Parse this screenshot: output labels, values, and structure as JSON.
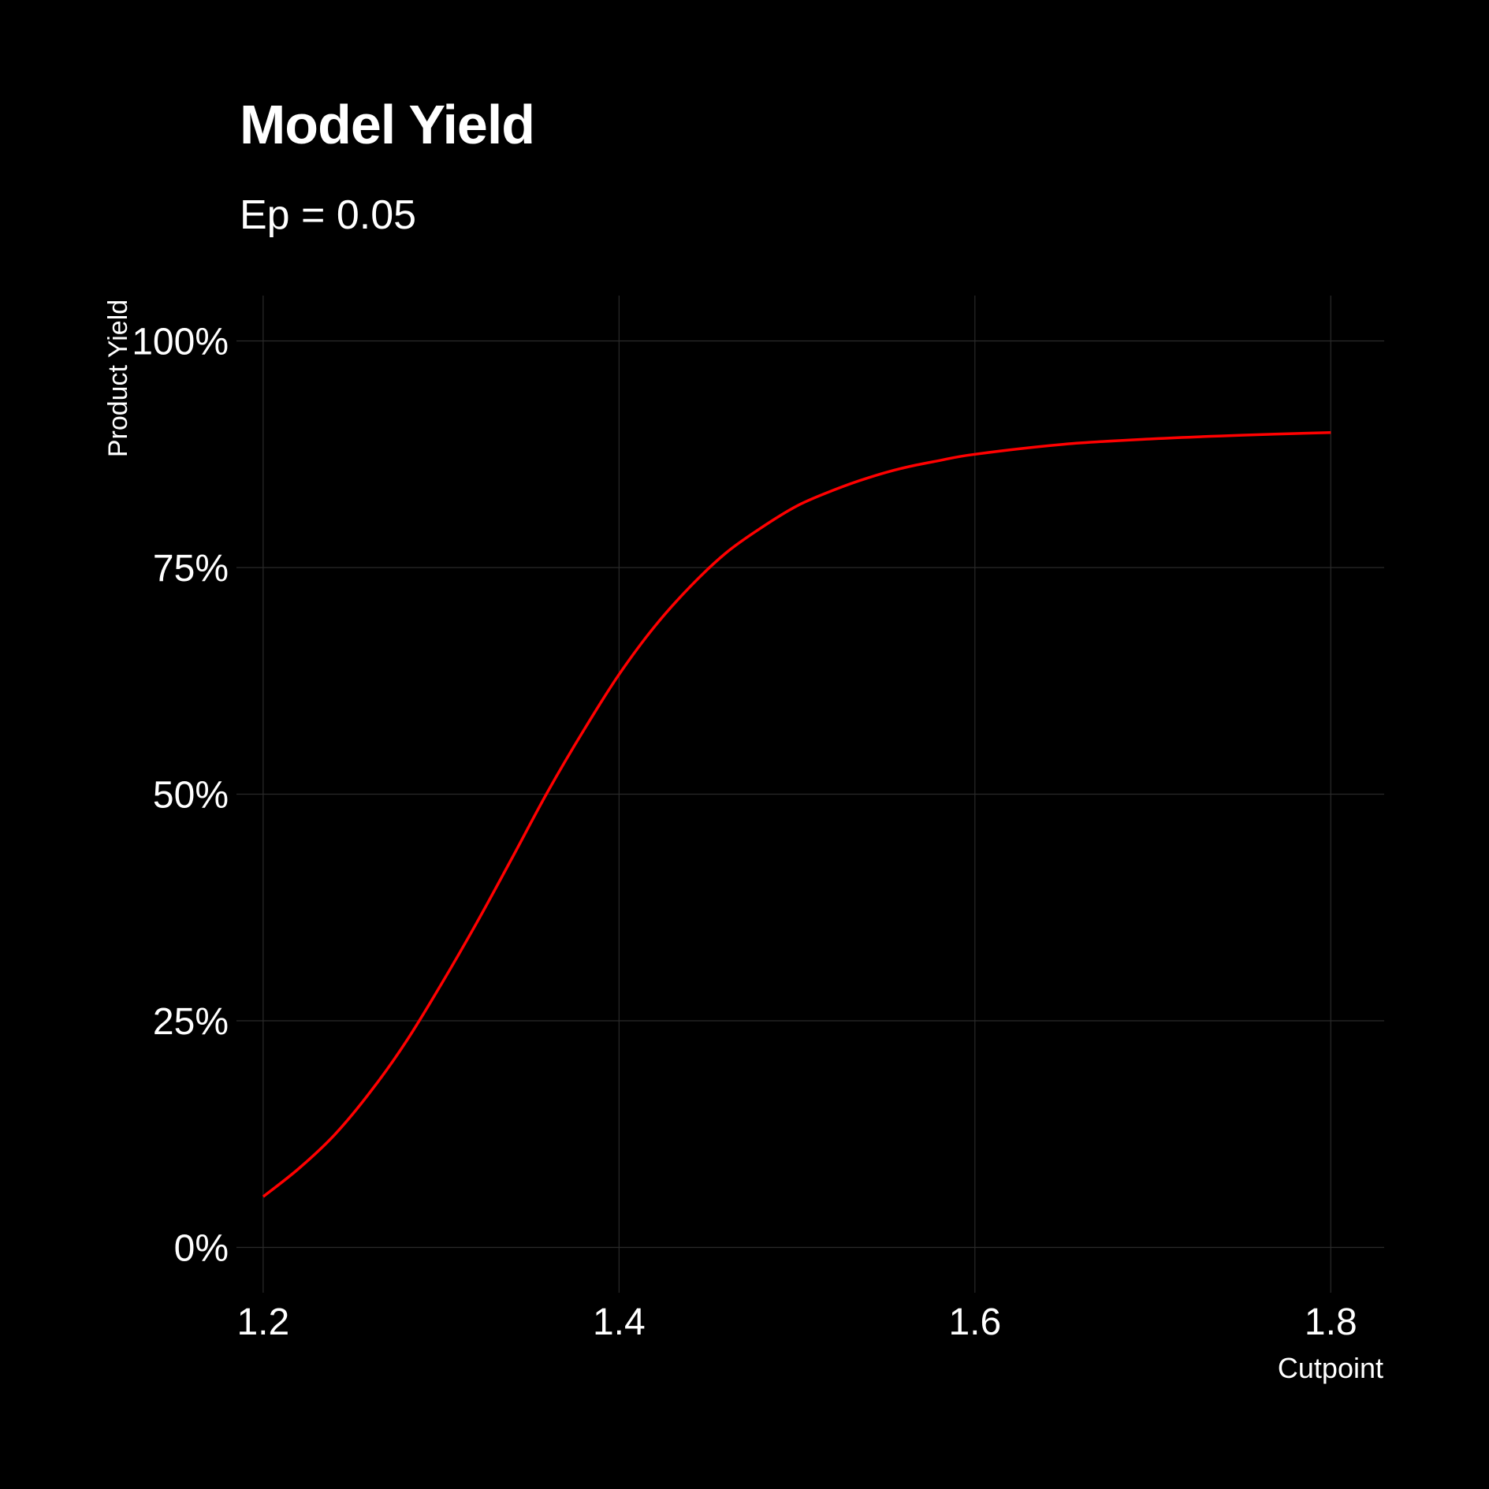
{
  "chart_data": {
    "type": "line",
    "title": "Model Yield",
    "subtitle": "Ep = 0.05",
    "xlabel": "Cutpoint",
    "ylabel": "Product Yield",
    "xlim": [
      1.185,
      1.83
    ],
    "ylim": [
      -0.05,
      1.05
    ],
    "x_ticks": [
      1.2,
      1.4,
      1.6,
      1.8
    ],
    "x_tick_labels": [
      "1.2",
      "1.4",
      "1.6",
      "1.8"
    ],
    "y_ticks": [
      0,
      0.25,
      0.5,
      0.75,
      1.0
    ],
    "y_tick_labels": [
      "0%",
      "25%",
      "50%",
      "75%",
      "100%"
    ],
    "grid": true,
    "background": "#000000",
    "grid_color": "#2a2a2a",
    "text_color": "#ffffff",
    "line_color": "#ff0000",
    "series": [
      {
        "x": [
          1.2,
          1.22,
          1.24,
          1.26,
          1.28,
          1.3,
          1.32,
          1.34,
          1.36,
          1.38,
          1.4,
          1.42,
          1.44,
          1.46,
          1.48,
          1.5,
          1.52,
          1.54,
          1.56,
          1.58,
          1.6,
          1.65,
          1.7,
          1.75,
          1.8
        ],
        "y": [
          0.056,
          0.087,
          0.124,
          0.171,
          0.226,
          0.29,
          0.358,
          0.43,
          0.503,
          0.57,
          0.632,
          0.685,
          0.729,
          0.766,
          0.794,
          0.818,
          0.835,
          0.849,
          0.86,
          0.868,
          0.875,
          0.886,
          0.892,
          0.896,
          0.899
        ]
      }
    ]
  }
}
